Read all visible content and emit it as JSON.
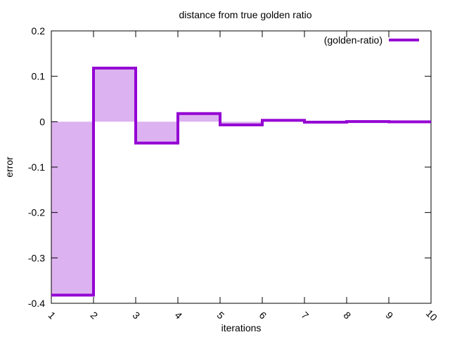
{
  "chart_data": {
    "type": "area",
    "title": "distance from true golden ratio",
    "xlabel": "iterations",
    "ylabel": "error",
    "xlim": [
      1,
      10
    ],
    "ylim": [
      -0.4,
      0.2
    ],
    "xticks": [
      1,
      2,
      3,
      4,
      5,
      6,
      7,
      8,
      9,
      10
    ],
    "xtick_labels": [
      "1",
      "2",
      "3",
      "4",
      "5",
      "6",
      "7",
      "8",
      "9",
      "10"
    ],
    "yticks": [
      -0.4,
      -0.3,
      -0.2,
      -0.1,
      0,
      0.1,
      0.2
    ],
    "ytick_labels": [
      "-0.4",
      "-0.3",
      "-0.2",
      "-0.1",
      "0",
      "0.1",
      "0.2"
    ],
    "grid": false,
    "legend": "top-right",
    "series": [
      {
        "name": "(golden-ratio)",
        "style": "steps",
        "x": [
          1,
          2,
          3,
          4,
          5,
          6,
          7,
          8,
          9
        ],
        "values": [
          -0.382,
          0.118,
          -0.047,
          0.018,
          -0.007,
          0.003,
          -0.001,
          0.0004,
          -0.0002
        ]
      }
    ],
    "colors": {
      "line": "#9400d3",
      "fill": "#dcb2f0"
    }
  }
}
